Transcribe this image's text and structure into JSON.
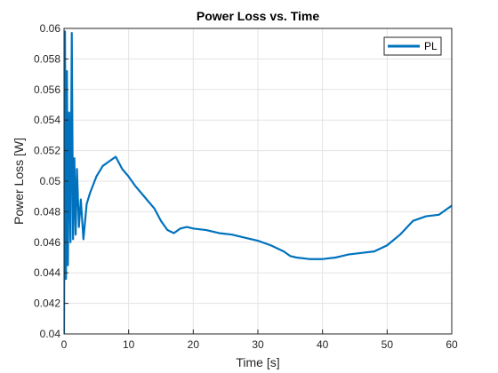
{
  "chart_data": {
    "type": "line",
    "title": "Power Loss vs. Time",
    "xlabel": "Time [s]",
    "ylabel": "Power Loss [W]",
    "xlim": [
      0,
      60
    ],
    "ylim": [
      0.04,
      0.06
    ],
    "x_ticks": [
      "0",
      "10",
      "20",
      "30",
      "40",
      "50",
      "60"
    ],
    "y_ticks": [
      "0.04",
      "0.042",
      "0.044",
      "0.046",
      "0.048",
      "0.05",
      "0.052",
      "0.054",
      "0.056",
      "0.058",
      "0.06"
    ],
    "grid": true,
    "legend_position": "top-right",
    "line_color": "#0072BD",
    "series": [
      {
        "name": "PL",
        "x": [
          0,
          0.15,
          0.3,
          0.45,
          0.6,
          0.8,
          1.0,
          1.2,
          1.4,
          1.6,
          1.8,
          2.0,
          2.3,
          2.6,
          3.0,
          3.5,
          4,
          5,
          6,
          7,
          8,
          9,
          10,
          11,
          12,
          13,
          14,
          15,
          16,
          17,
          18,
          19,
          20,
          22,
          24,
          26,
          28,
          30,
          32,
          34,
          35,
          36,
          38,
          40,
          42,
          44,
          46,
          48,
          50,
          52,
          54,
          56,
          58,
          60
        ],
        "y": [
          0.04,
          0.0598,
          0.0436,
          0.0572,
          0.0445,
          0.0545,
          0.046,
          0.0597,
          0.0462,
          0.0515,
          0.0465,
          0.0508,
          0.047,
          0.0488,
          0.0462,
          0.0485,
          0.0492,
          0.0503,
          0.051,
          0.0513,
          0.0516,
          0.0508,
          0.0503,
          0.0497,
          0.0492,
          0.0487,
          0.0482,
          0.0474,
          0.0468,
          0.0466,
          0.0469,
          0.047,
          0.0469,
          0.0468,
          0.0466,
          0.0465,
          0.0463,
          0.0461,
          0.0458,
          0.0454,
          0.0451,
          0.045,
          0.0449,
          0.0449,
          0.045,
          0.0452,
          0.0453,
          0.0454,
          0.0458,
          0.0465,
          0.0474,
          0.0477,
          0.0478,
          0.0484
        ]
      }
    ]
  }
}
